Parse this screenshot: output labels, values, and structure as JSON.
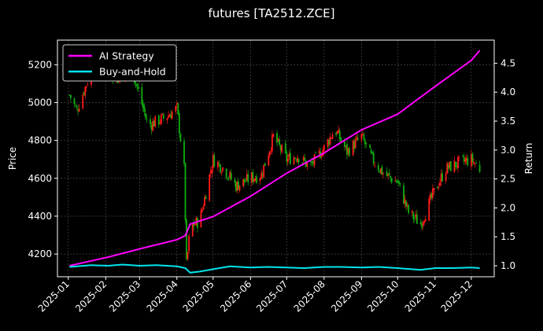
{
  "chart_data": {
    "type": "line",
    "title": "futures [TA2512.ZCE]",
    "xlabel": "",
    "ylabel": "Price",
    "y2label": "Return",
    "ylim": [
      4080,
      5330
    ],
    "y2lim": [
      0.81,
      4.9
    ],
    "xlim": [
      "2024-12-23",
      "2025-12-20"
    ],
    "x_ticks": [
      "2025-01",
      "2025-02",
      "2025-03",
      "2025-04",
      "2025-05",
      "2025-06",
      "2025-07",
      "2025-08",
      "2025-09",
      "2025-10",
      "2025-11",
      "2025-12"
    ],
    "y_ticks": [
      4200,
      4400,
      4600,
      4800,
      5000,
      5200
    ],
    "y2_ticks": [
      "1.0",
      "1.5",
      "2.0",
      "2.5",
      "3.0",
      "3.5",
      "4.0",
      "4.5"
    ],
    "legend": {
      "placement": "top-left",
      "entries": [
        "AI Strategy",
        "Buy-and-Hold"
      ]
    },
    "grid": true,
    "colors": {
      "ai": "#ff00ff",
      "bh": "#00e5ee",
      "up": "#ff1a1a",
      "down": "#10b010",
      "bg": "#000000",
      "fg": "#ffffff"
    },
    "series": [
      {
        "name": "AI Strategy",
        "axis": "right",
        "x": [
          "2025-01-02",
          "2025-02-03",
          "2025-03-03",
          "2025-04-01",
          "2025-04-08",
          "2025-04-12",
          "2025-05-01",
          "2025-06-01",
          "2025-07-01",
          "2025-08-01",
          "2025-09-01",
          "2025-10-01",
          "2025-11-01",
          "2025-12-01",
          "2025-12-08"
        ],
        "values": [
          1.0,
          1.15,
          1.3,
          1.45,
          1.52,
          1.72,
          1.85,
          2.2,
          2.6,
          2.95,
          3.35,
          3.62,
          4.1,
          4.55,
          4.72
        ]
      },
      {
        "name": "Buy-and-Hold",
        "axis": "right",
        "x": [
          "2025-01-02",
          "2025-01-20",
          "2025-02-03",
          "2025-02-15",
          "2025-03-01",
          "2025-03-15",
          "2025-04-01",
          "2025-04-08",
          "2025-04-12",
          "2025-04-20",
          "2025-05-01",
          "2025-05-15",
          "2025-06-01",
          "2025-06-15",
          "2025-07-01",
          "2025-07-15",
          "2025-08-01",
          "2025-08-15",
          "2025-09-01",
          "2025-09-15",
          "2025-10-01",
          "2025-10-20",
          "2025-11-01",
          "2025-11-15",
          "2025-12-01",
          "2025-12-08"
        ],
        "values": [
          0.98,
          1.01,
          1.0,
          1.02,
          1.0,
          1.01,
          0.99,
          0.96,
          0.88,
          0.9,
          0.94,
          0.99,
          0.97,
          0.98,
          0.97,
          0.96,
          0.98,
          0.98,
          0.97,
          0.98,
          0.96,
          0.93,
          0.96,
          0.96,
          0.97,
          0.96
        ]
      },
      {
        "name": "",
        "axis": "left",
        "kind": "candlestick_close",
        "x": [
          "2025-01-02",
          "2025-01-08",
          "2025-01-15",
          "2025-01-22",
          "2025-02-05",
          "2025-02-12",
          "2025-02-20",
          "2025-03-01",
          "2025-03-08",
          "2025-03-15",
          "2025-03-22",
          "2025-04-01",
          "2025-04-07",
          "2025-04-09",
          "2025-04-12",
          "2025-04-20",
          "2025-05-01",
          "2025-05-10",
          "2025-05-20",
          "2025-06-01",
          "2025-06-10",
          "2025-06-20",
          "2025-07-01",
          "2025-07-10",
          "2025-07-20",
          "2025-08-01",
          "2025-08-10",
          "2025-08-20",
          "2025-09-01",
          "2025-09-10",
          "2025-09-20",
          "2025-10-01",
          "2025-10-10",
          "2025-10-20",
          "2025-11-01",
          "2025-11-10",
          "2025-11-20",
          "2025-12-01",
          "2025-12-08"
        ],
        "values": [
          5040,
          4960,
          5080,
          5200,
          5160,
          5120,
          5230,
          5040,
          4880,
          4900,
          4920,
          4970,
          4650,
          4140,
          4340,
          4380,
          4700,
          4650,
          4560,
          4600,
          4620,
          4820,
          4700,
          4720,
          4660,
          4760,
          4860,
          4740,
          4820,
          4700,
          4620,
          4580,
          4420,
          4360,
          4540,
          4650,
          4680,
          4700,
          4650
        ]
      }
    ]
  }
}
